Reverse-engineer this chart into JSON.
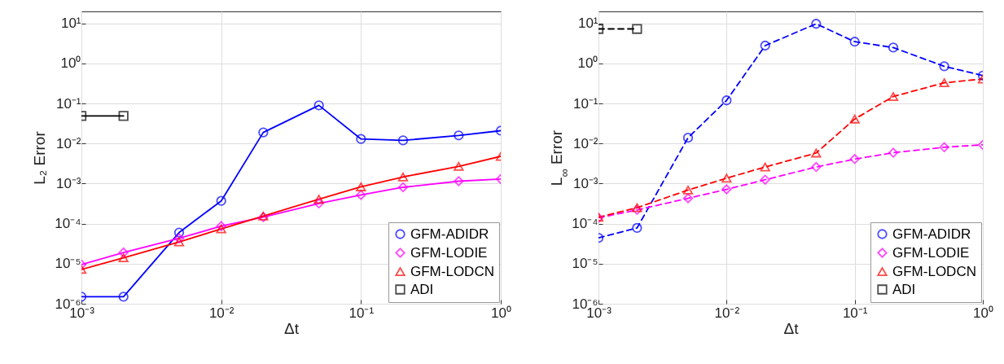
{
  "chart_data": [
    {
      "type": "line",
      "xlabel": "Δt",
      "ylabel": "L₂ Error",
      "log": "xy",
      "grid": true,
      "legend": "bottom right",
      "line_style": "solid",
      "x": [
        0.001,
        0.002,
        0.005,
        0.01,
        0.02,
        0.05,
        0.1,
        0.2,
        0.5,
        1
      ],
      "xlim": [
        0.001,
        1
      ],
      "ylim": [
        1e-06,
        20
      ],
      "xticks": [
        {
          "value": 0.001,
          "label": "10⁻³"
        },
        {
          "value": 0.01,
          "label": "10⁻²"
        },
        {
          "value": 0.1,
          "label": "10⁻¹"
        },
        {
          "value": 1,
          "label": "10⁰"
        }
      ],
      "yticks": [
        {
          "value": 1e-06,
          "label": "10⁻⁶"
        },
        {
          "value": 1e-05,
          "label": "10⁻⁵"
        },
        {
          "value": 0.0001,
          "label": "10⁻⁴"
        },
        {
          "value": 0.001,
          "label": "10⁻³"
        },
        {
          "value": 0.01,
          "label": "10⁻²"
        },
        {
          "value": 0.1,
          "label": "10⁻¹"
        },
        {
          "value": 1,
          "label": "10⁰"
        },
        {
          "value": 10,
          "label": "10¹"
        }
      ],
      "series": [
        {
          "name": "GFM-ADIDR",
          "color": "#0000ff",
          "marker": "circle",
          "values": [
            1.5e-06,
            1.5e-06,
            6e-05,
            0.00037,
            0.019,
            0.09,
            0.013,
            0.012,
            0.016,
            0.021
          ]
        },
        {
          "name": "GFM-LODIE",
          "color": "#ff00ff",
          "marker": "diamond",
          "values": [
            9.5e-06,
            1.9e-05,
            4.3e-05,
            8.7e-05,
            0.000145,
            0.00032,
            0.00052,
            0.00081,
            0.00115,
            0.0013
          ]
        },
        {
          "name": "GFM-LODCN",
          "color": "#ff0000",
          "marker": "triangle",
          "values": [
            7.2e-06,
            1.4e-05,
            3.5e-05,
            7.4e-05,
            0.000155,
            0.00041,
            0.00083,
            0.00147,
            0.0027,
            0.0048
          ]
        },
        {
          "name": "ADI",
          "color": "#000000",
          "marker": "square",
          "values": [
            0.049,
            0.049,
            null,
            null,
            null,
            null,
            null,
            null,
            null,
            null
          ]
        }
      ]
    },
    {
      "type": "line",
      "xlabel": "Δt",
      "ylabel": "L$_{∞}$ Error",
      "log": "xy",
      "grid": true,
      "legend": "bottom right",
      "line_style": "dashed",
      "x": [
        0.001,
        0.002,
        0.005,
        0.01,
        0.02,
        0.05,
        0.1,
        0.2,
        0.5,
        1
      ],
      "xlim": [
        0.001,
        1
      ],
      "ylim": [
        1e-06,
        20
      ],
      "xticks": [
        {
          "value": 0.001,
          "label": "10⁻³"
        },
        {
          "value": 0.01,
          "label": "10⁻²"
        },
        {
          "value": 0.1,
          "label": "10⁻¹"
        },
        {
          "value": 1,
          "label": "10⁰"
        }
      ],
      "yticks": [
        {
          "value": 1e-06,
          "label": "10⁻⁶"
        },
        {
          "value": 1e-05,
          "label": "10⁻⁵"
        },
        {
          "value": 0.0001,
          "label": "10⁻⁴"
        },
        {
          "value": 0.001,
          "label": "10⁻³"
        },
        {
          "value": 0.01,
          "label": "10⁻²"
        },
        {
          "value": 0.1,
          "label": "10⁻¹"
        },
        {
          "value": 1,
          "label": "10⁰"
        },
        {
          "value": 10,
          "label": "10¹"
        }
      ],
      "series": [
        {
          "name": "GFM-ADIDR",
          "color": "#0000ff",
          "marker": "circle",
          "values": [
            4.4e-05,
            7.8e-05,
            0.014,
            0.12,
            2.8,
            9.8,
            3.5,
            2.5,
            0.85,
            0.5
          ]
        },
        {
          "name": "GFM-LODIE",
          "color": "#ff00ff",
          "marker": "diamond",
          "values": [
            0.00014,
            0.00022,
            0.00043,
            0.00072,
            0.00125,
            0.0026,
            0.0041,
            0.0059,
            0.0081,
            0.0093
          ]
        },
        {
          "name": "GFM-LODCN",
          "color": "#ff0000",
          "marker": "triangle",
          "values": [
            0.000145,
            0.00025,
            0.00069,
            0.00137,
            0.0026,
            0.0058,
            0.041,
            0.15,
            0.33,
            0.41
          ]
        },
        {
          "name": "ADI",
          "color": "#000000",
          "marker": "square",
          "values": [
            7.3,
            7.3,
            null,
            null,
            null,
            null,
            null,
            null,
            null,
            null
          ]
        }
      ]
    }
  ]
}
